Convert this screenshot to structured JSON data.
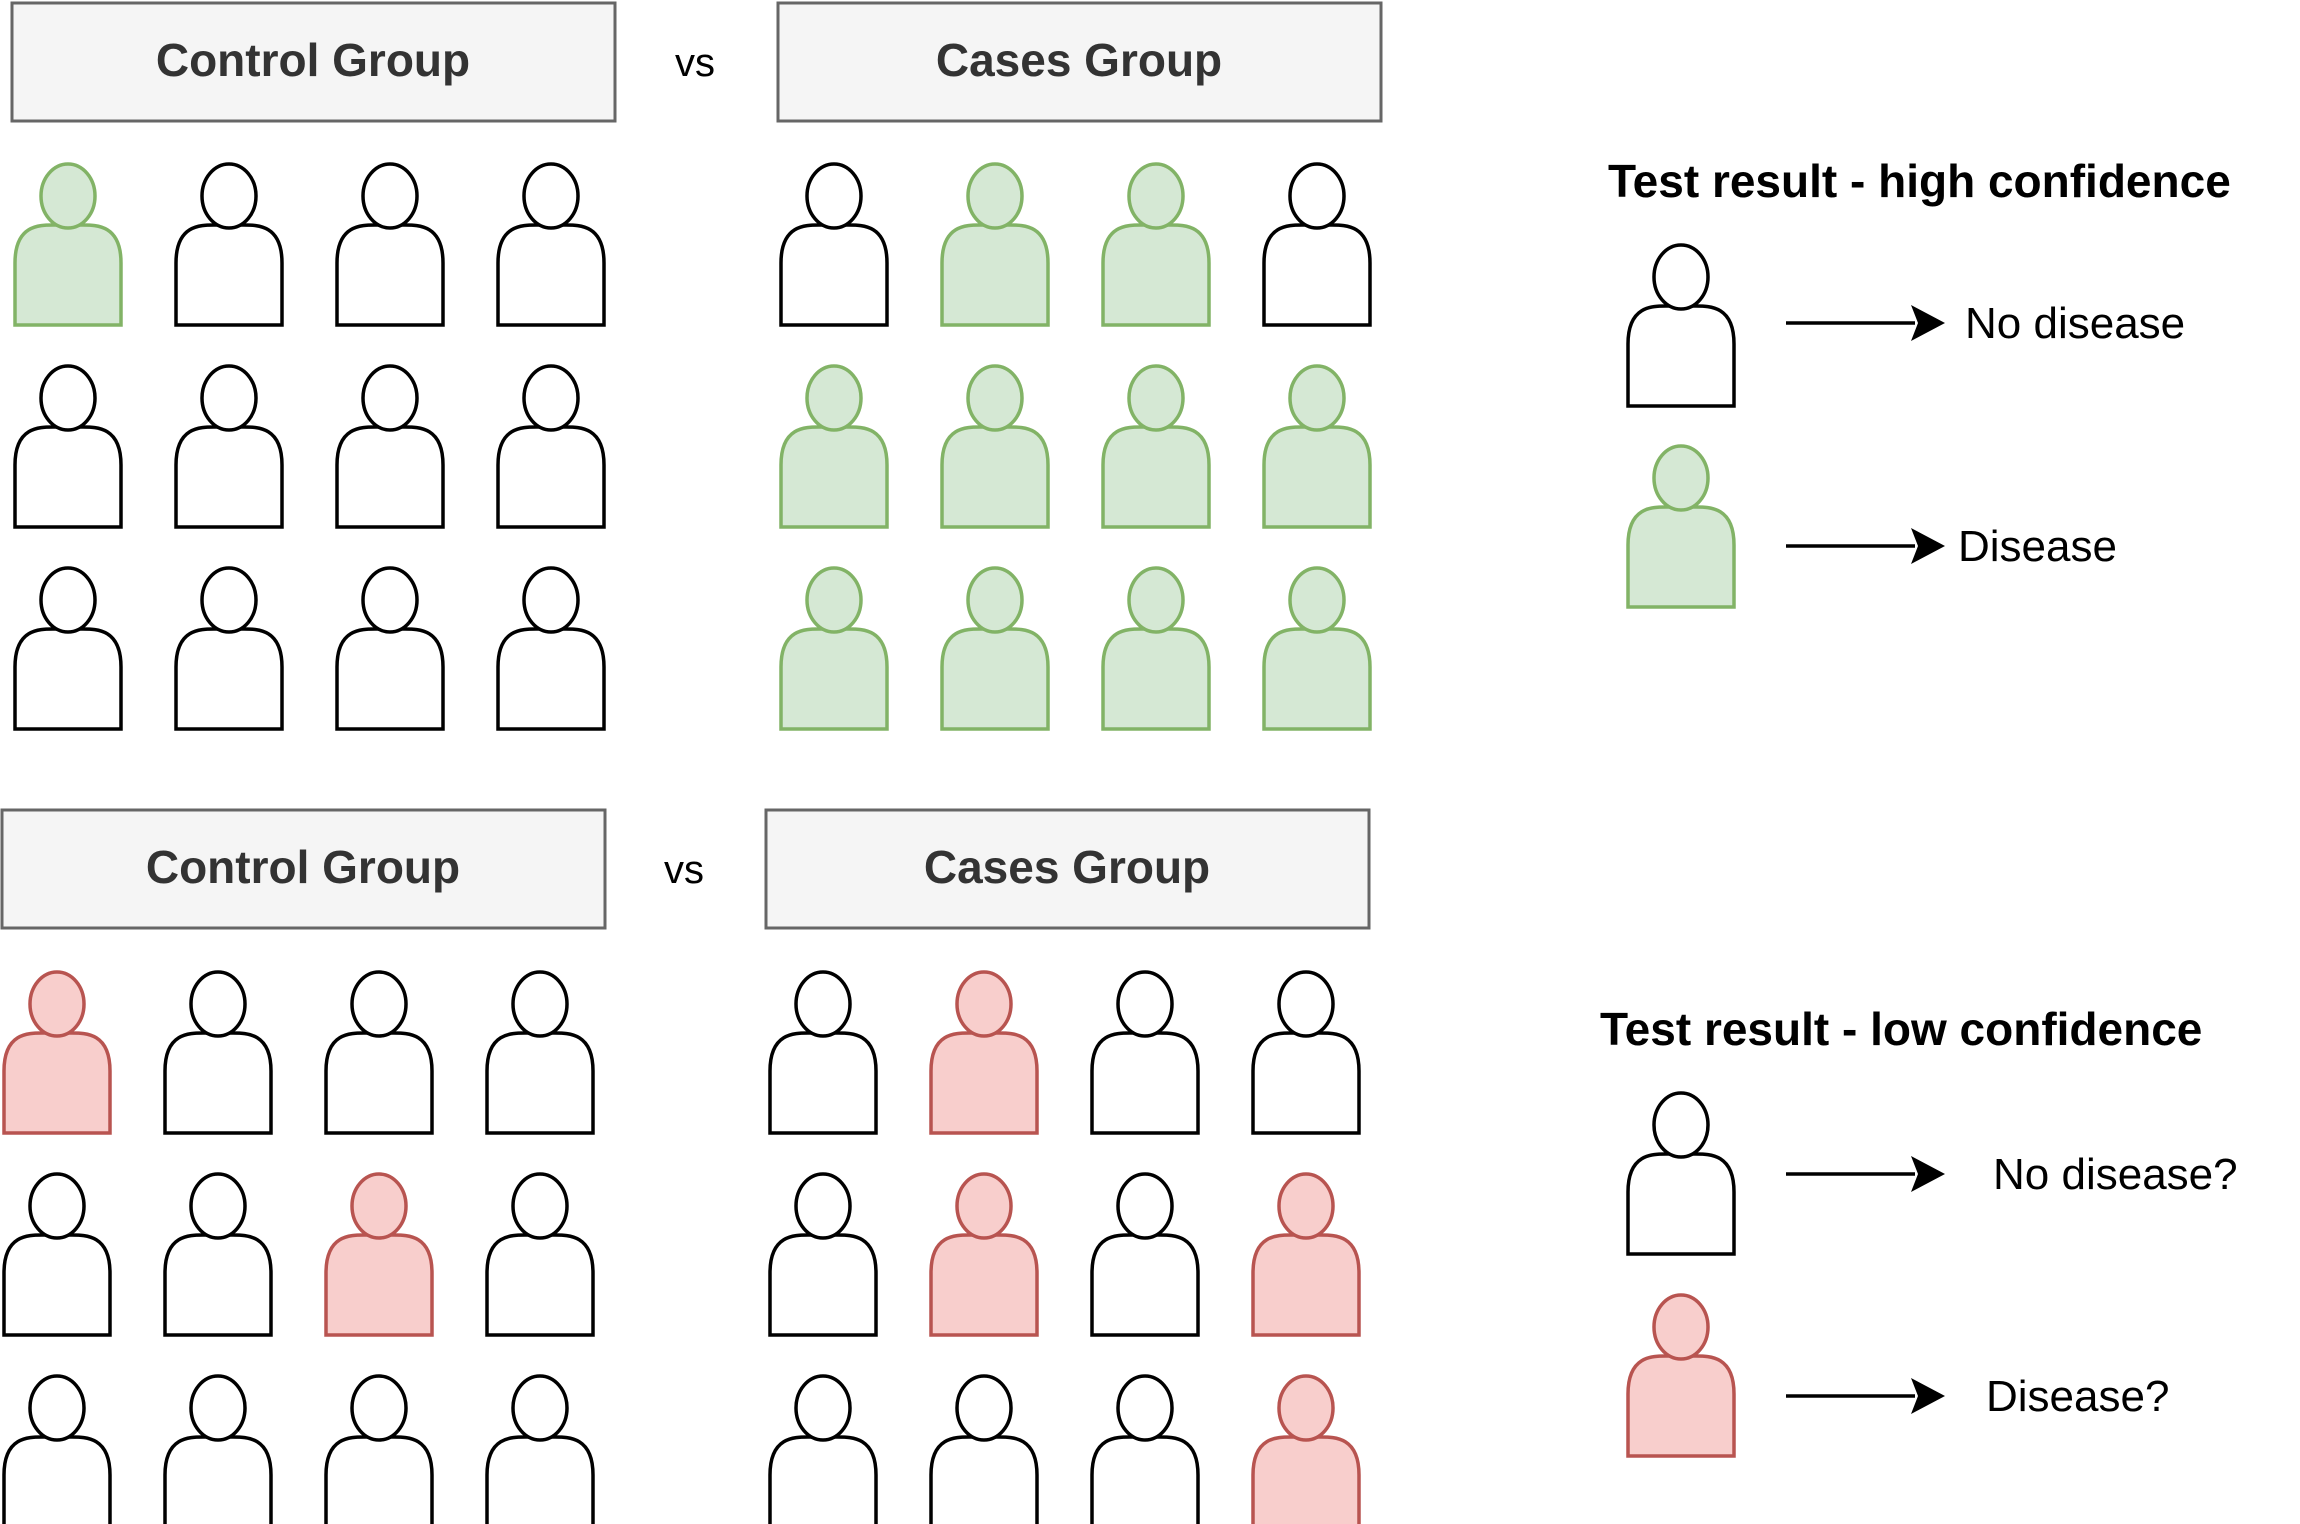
{
  "colors": {
    "neutral_fill": "#ffffff",
    "neutral_stroke": "#000000",
    "disease_fill": "#d5e8d4",
    "disease_stroke": "#82b366",
    "uncertain_fill": "#f8cecc",
    "uncertain_stroke": "#b85450",
    "box_fill": "#f5f5f5",
    "box_stroke": "#666666"
  },
  "high_confidence": {
    "control_label": "Control Group",
    "vs_label": "vs",
    "cases_label": "Cases Group",
    "control_grid": [
      [
        "disease",
        "neutral",
        "neutral",
        "neutral"
      ],
      [
        "neutral",
        "neutral",
        "neutral",
        "neutral"
      ],
      [
        "neutral",
        "neutral",
        "neutral",
        "neutral"
      ]
    ],
    "cases_grid": [
      [
        "neutral",
        "disease",
        "disease",
        "neutral"
      ],
      [
        "disease",
        "disease",
        "disease",
        "disease"
      ],
      [
        "disease",
        "disease",
        "disease",
        "disease"
      ]
    ],
    "legend": {
      "title": "Test result - high confidence",
      "items": [
        {
          "status": "neutral",
          "label": "No disease"
        },
        {
          "status": "disease",
          "label": "Disease"
        }
      ]
    }
  },
  "low_confidence": {
    "control_label": "Control Group",
    "vs_label": "vs",
    "cases_label": "Cases Group",
    "control_grid": [
      [
        "uncertain",
        "neutral",
        "neutral",
        "neutral"
      ],
      [
        "neutral",
        "neutral",
        "uncertain",
        "neutral"
      ],
      [
        "neutral",
        "neutral",
        "neutral",
        "neutral"
      ]
    ],
    "cases_grid": [
      [
        "neutral",
        "uncertain",
        "neutral",
        "neutral"
      ],
      [
        "neutral",
        "uncertain",
        "neutral",
        "uncertain"
      ],
      [
        "neutral",
        "neutral",
        "neutral",
        "uncertain"
      ]
    ],
    "legend": {
      "title": "Test result - low confidence",
      "items": [
        {
          "status": "neutral",
          "label": "No disease?"
        },
        {
          "status": "uncertain",
          "label": "Disease?"
        }
      ]
    }
  }
}
